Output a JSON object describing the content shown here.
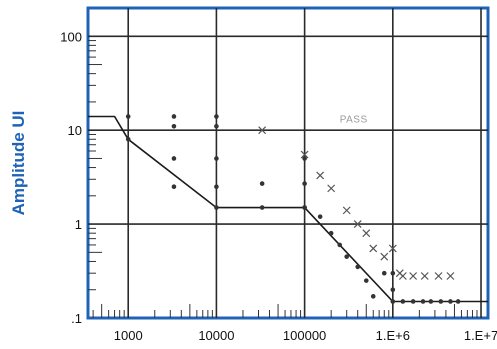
{
  "chart_data": {
    "type": "scatter",
    "title": "",
    "xlabel": "",
    "ylabel": "Amplitude UI",
    "xscale": "log",
    "yscale": "log",
    "xlim": [
      350,
      12000000
    ],
    "ylim": [
      0.1,
      200
    ],
    "grid": true,
    "xticks": [
      {
        "value": 1000,
        "label": "1000"
      },
      {
        "value": 10000,
        "label": "10000"
      },
      {
        "value": 100000,
        "label": "100000"
      },
      {
        "value": 1000000,
        "label": "1.E+6"
      },
      {
        "value": 10000000,
        "label": "1.E+7"
      }
    ],
    "yticks": [
      {
        "value": 100,
        "label": "100"
      },
      {
        "value": 10,
        "label": "10"
      },
      {
        "value": 1,
        "label": "1"
      },
      {
        "value": 0.1,
        "label": ".1"
      }
    ],
    "annotations": [
      {
        "text": "PASS",
        "x": 250000,
        "y": 12
      }
    ],
    "series": [
      {
        "style": "line",
        "x": [
          350,
          700,
          1000,
          10000,
          100000,
          1000000,
          12000000
        ],
        "y": [
          14,
          14,
          8,
          1.5,
          1.5,
          0.15,
          0.15
        ]
      },
      {
        "style": "dot",
        "x": [
          1000,
          1000,
          3300,
          3300,
          3300,
          3300,
          10000,
          10000,
          10000,
          10000,
          10000,
          33000,
          33000,
          100000,
          100000,
          100000,
          100000,
          150000,
          200000,
          250000,
          300000,
          400000,
          500000,
          600000,
          800000,
          1000000,
          1000000,
          1000000,
          1300000,
          1700000,
          2200000,
          2700000,
          3500000,
          4500000,
          5500000
        ],
        "y": [
          8,
          14,
          14,
          11,
          5,
          2.5,
          14,
          11,
          5,
          2.5,
          1.5,
          2.7,
          1.5,
          2.7,
          1.5,
          5,
          1.5,
          1.2,
          0.8,
          0.6,
          0.45,
          0.35,
          0.25,
          0.17,
          0.3,
          0.2,
          0.15,
          0.3,
          0.15,
          0.15,
          0.15,
          0.15,
          0.15,
          0.15,
          0.15
        ]
      },
      {
        "style": "x",
        "x": [
          33000,
          100000,
          150000,
          200000,
          300000,
          400000,
          500000,
          600000,
          800000,
          1000000,
          1200000,
          1300000,
          1700000,
          2300000,
          3300000,
          4500000
        ],
        "y": [
          10,
          5.5,
          3.3,
          2.4,
          1.4,
          1.0,
          0.8,
          0.55,
          0.45,
          0.55,
          0.3,
          0.28,
          0.28,
          0.28,
          0.28,
          0.28
        ]
      }
    ]
  }
}
